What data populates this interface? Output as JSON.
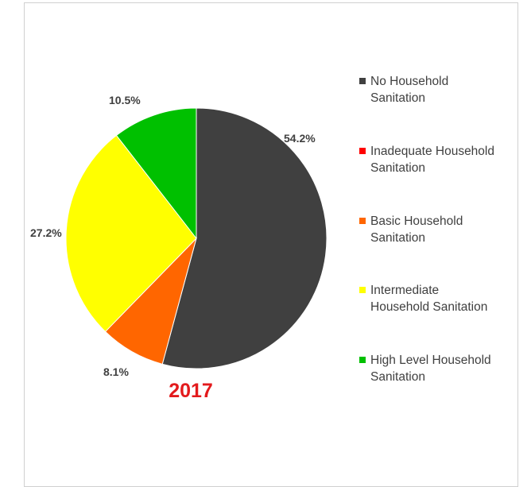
{
  "chart_data": {
    "type": "pie",
    "title": "2017",
    "categories": [
      "No Household Sanitation",
      "Inadequate Household Sanitation",
      "Basic Household Sanitation",
      "Intermediate Household Sanitation",
      "High Level Household Sanitation"
    ],
    "values": [
      54.2,
      0,
      8.1,
      27.2,
      10.5
    ],
    "labels": [
      "54.2%",
      "",
      "8.1%",
      "27.2%",
      "10.5%"
    ],
    "colors": [
      "#404040",
      "#ff0000",
      "#ff6600",
      "#ffff00",
      "#00c000"
    ],
    "legend_position": "right"
  }
}
